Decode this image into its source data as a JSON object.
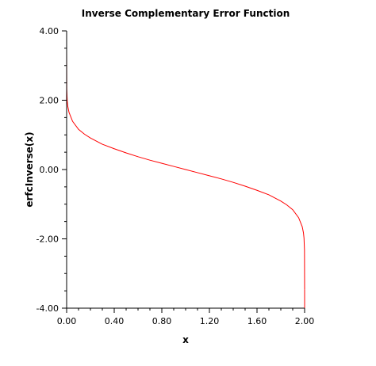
{
  "chart_data": {
    "type": "line",
    "title": "Inverse Complementary Error Function",
    "xlabel": "x",
    "ylabel": "erfcInverse(x)",
    "xlim": [
      0,
      2
    ],
    "ylim": [
      -4,
      4
    ],
    "x_ticks": [
      "0.00",
      "0.40",
      "0.80",
      "1.20",
      "1.60",
      "2.00"
    ],
    "y_ticks": [
      "4.00",
      "2.00",
      "0.00",
      "-2.00",
      "-4.00"
    ],
    "grid": false,
    "legend": "none",
    "series": [
      {
        "color": "#ff0000",
        "points": [
          [
            1e-06,
            3.46
          ],
          [
            0.001,
            2.33
          ],
          [
            0.005,
            1.98
          ],
          [
            0.01,
            1.82
          ],
          [
            0.02,
            1.65
          ],
          [
            0.05,
            1.39
          ],
          [
            0.1,
            1.16
          ],
          [
            0.15,
            1.02
          ],
          [
            0.2,
            0.91
          ],
          [
            0.3,
            0.73
          ],
          [
            0.4,
            0.6
          ],
          [
            0.5,
            0.48
          ],
          [
            0.6,
            0.37
          ],
          [
            0.7,
            0.27
          ],
          [
            0.8,
            0.18
          ],
          [
            0.9,
            0.09
          ],
          [
            1.0,
            0.0
          ],
          [
            1.1,
            -0.09
          ],
          [
            1.2,
            -0.18
          ],
          [
            1.3,
            -0.27
          ],
          [
            1.4,
            -0.37
          ],
          [
            1.5,
            -0.48
          ],
          [
            1.6,
            -0.6
          ],
          [
            1.7,
            -0.73
          ],
          [
            1.8,
            -0.91
          ],
          [
            1.85,
            -1.02
          ],
          [
            1.9,
            -1.16
          ],
          [
            1.95,
            -1.39
          ],
          [
            1.98,
            -1.65
          ],
          [
            1.99,
            -1.82
          ],
          [
            1.995,
            -1.98
          ],
          [
            1.999,
            -2.33
          ],
          [
            1.999999,
            -3.46
          ]
        ]
      }
    ],
    "vertical_segments": [
      {
        "x": 0.0,
        "y0": 4.0,
        "y1": 3.46
      },
      {
        "x": 2.0,
        "y0": -3.46,
        "y1": -4.0
      }
    ]
  }
}
